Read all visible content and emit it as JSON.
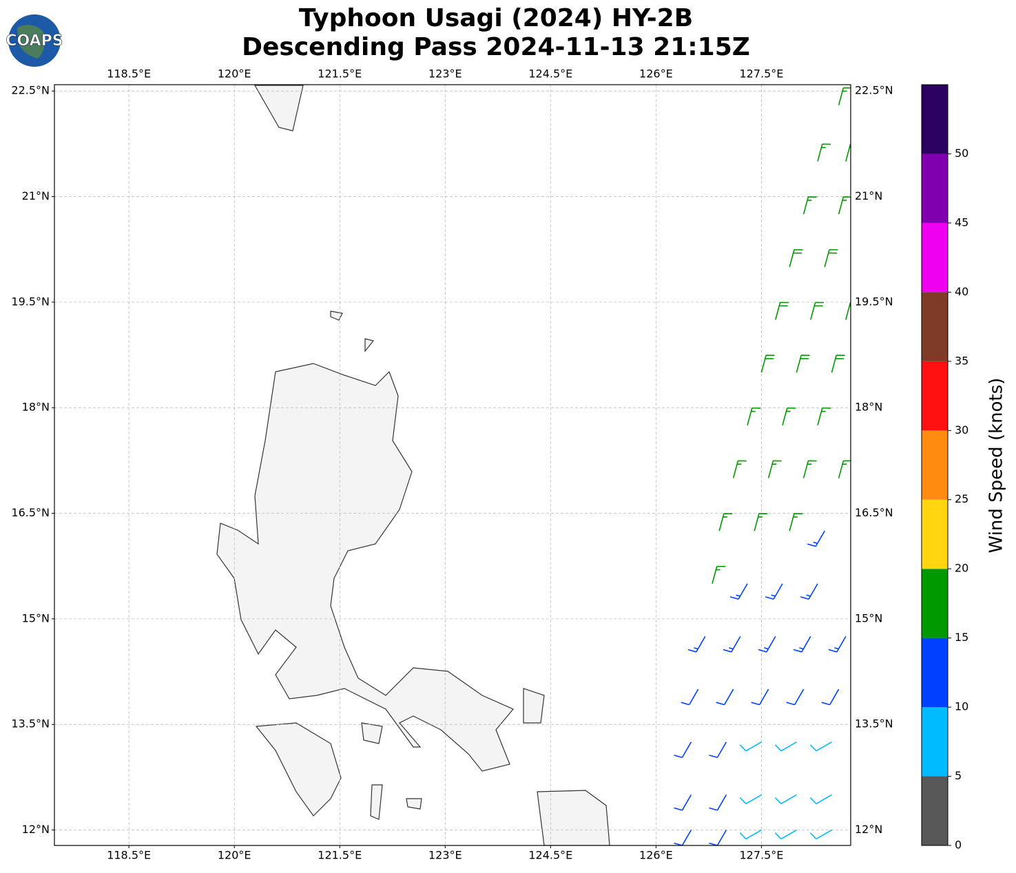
{
  "map": {
    "type": "wind-barbs",
    "logo": "COAPS",
    "title": [
      "Typhoon Usagi (2024) HY-2B",
      "Descending Pass 2024-11-13 21:15Z"
    ],
    "xlim": [
      117.44,
      128.77
    ],
    "ylim": [
      11.78,
      22.59
    ],
    "xticks": [
      {
        "value": 118.5,
        "label": "118.5°E"
      },
      {
        "value": 120,
        "label": "120°E"
      },
      {
        "value": 121.5,
        "label": "121.5°E"
      },
      {
        "value": 123,
        "label": "123°E"
      },
      {
        "value": 124.5,
        "label": "124.5°E"
      },
      {
        "value": 126,
        "label": "126°E"
      },
      {
        "value": 127.5,
        "label": "127.5°E"
      }
    ],
    "yticks": [
      {
        "value": 12,
        "label": "12°N"
      },
      {
        "value": 13.5,
        "label": "13.5°N"
      },
      {
        "value": 15,
        "label": "15°N"
      },
      {
        "value": 16.5,
        "label": "16.5°N"
      },
      {
        "value": 18,
        "label": "18°N"
      },
      {
        "value": 19.5,
        "label": "19.5°N"
      },
      {
        "value": 21,
        "label": "21°N"
      },
      {
        "value": 22.5,
        "label": "22.5°N"
      }
    ],
    "grid": true,
    "colorbar": {
      "label": "Wind Speed (knots)",
      "bounds": [
        0,
        5,
        10,
        15,
        20,
        25,
        30,
        35,
        40,
        45,
        50,
        55
      ],
      "colors": [
        "#575757",
        "#00bbff",
        "#0040ff",
        "#009900",
        "#ffd610",
        "#ff8c10",
        "#ff1010",
        "#7f3a28",
        "#f000f0",
        "#8000b0",
        "#2a0060"
      ],
      "ticks": [
        0,
        5,
        10,
        15,
        20,
        25,
        30,
        35,
        40,
        45,
        50
      ]
    },
    "barbs": {
      "lon": [
        128.6,
        128.3,
        128.7,
        128.1,
        128.6,
        127.9,
        128.4,
        127.7,
        128.2,
        128.7,
        127.5,
        128.0,
        128.5,
        127.3,
        127.8,
        128.3,
        127.1,
        127.6,
        128.1,
        128.6,
        126.9,
        127.4,
        127.9,
        128.4,
        126.8,
        127.3,
        127.8,
        128.3,
        126.7,
        127.2,
        127.7,
        128.2,
        128.7,
        126.6,
        127.1,
        127.6,
        128.1,
        128.6,
        126.5,
        127.0,
        127.5,
        128.0,
        128.5,
        126.5,
        127.0,
        127.5,
        128.0,
        128.5,
        126.5,
        127.0,
        127.5,
        128.0,
        128.5
      ],
      "lat": [
        22.3,
        21.5,
        21.5,
        20.75,
        20.75,
        20.0,
        20.0,
        19.25,
        19.25,
        19.25,
        18.5,
        18.5,
        18.5,
        17.75,
        17.75,
        17.75,
        17.0,
        17.0,
        17.0,
        17.0,
        16.25,
        16.25,
        16.25,
        16.25,
        15.5,
        15.5,
        15.5,
        15.5,
        14.75,
        14.75,
        14.75,
        14.75,
        14.75,
        14.0,
        14.0,
        14.0,
        14.0,
        14.0,
        13.25,
        13.25,
        13.25,
        13.25,
        13.25,
        12.5,
        12.5,
        12.5,
        12.5,
        12.5,
        12.0,
        12.0,
        12.0,
        12.0,
        12.0
      ],
      "speed": [
        17,
        17,
        17,
        17,
        17,
        18,
        18,
        18,
        18,
        18,
        18,
        18,
        18,
        17,
        17,
        17,
        17,
        17,
        17,
        16,
        17,
        17,
        16,
        13,
        16,
        13,
        13,
        13,
        13,
        13,
        13,
        13,
        13,
        12,
        12,
        12,
        12,
        12,
        12,
        12,
        9,
        8,
        8,
        12,
        12,
        8,
        8,
        8,
        12,
        12,
        8,
        8,
        8
      ],
      "direction": [
        15,
        15,
        15,
        15,
        15,
        15,
        15,
        15,
        15,
        15,
        15,
        15,
        15,
        15,
        15,
        15,
        15,
        15,
        15,
        15,
        15,
        15,
        15,
        210,
        15,
        210,
        210,
        210,
        210,
        210,
        210,
        210,
        210,
        210,
        210,
        210,
        210,
        210,
        210,
        210,
        240,
        240,
        240,
        210,
        210,
        240,
        240,
        240,
        210,
        210,
        240,
        240,
        240
      ]
    }
  }
}
